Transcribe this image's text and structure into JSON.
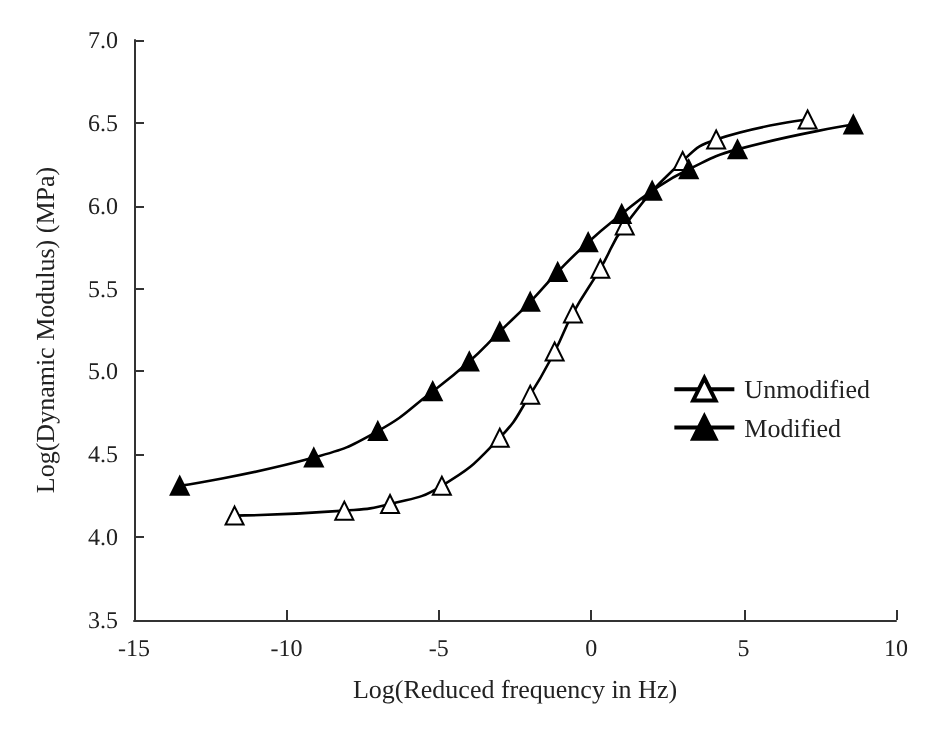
{
  "chart_data": {
    "type": "line",
    "xlabel": "Log(Reduced frequency in Hz)",
    "ylabel": "Log(Dynamic Modulus) (MPa)",
    "xlim": [
      -15,
      10
    ],
    "xticks": [
      -15,
      -10,
      -5,
      0,
      5,
      10
    ],
    "ylim": [
      3.5,
      7.0
    ],
    "yticks": [
      {
        "value": 3.5,
        "label": "3.5"
      },
      {
        "value": 4.0,
        "label": "4.0"
      },
      {
        "value": 4.5,
        "label": "4.5"
      },
      {
        "value": 5.0,
        "label": "5.0"
      },
      {
        "value": 5.5,
        "label": "5.5"
      },
      {
        "value": 6.0,
        "label": "6.0"
      },
      {
        "value": 6.5,
        "label": "6.5"
      },
      {
        "value": 7.0,
        "label": "7.0"
      }
    ],
    "grid": false,
    "legend": "right",
    "marker": "triangle",
    "line_style": "solid",
    "series": [
      {
        "name": "Unmodified",
        "color": "#000000",
        "x": [
          -11.7,
          -8.1,
          -6.6,
          -4.9,
          -3.0,
          -2.0,
          -1.2,
          -0.6,
          0.3,
          1.1,
          3.0,
          4.1,
          7.1
        ],
        "values": [
          4.13,
          4.16,
          4.2,
          4.31,
          4.6,
          4.86,
          5.12,
          5.35,
          5.62,
          5.88,
          6.27,
          6.4,
          6.52
        ]
      },
      {
        "name": "Modified",
        "color": "#000000",
        "x": [
          -13.5,
          -9.1,
          -7.0,
          -5.2,
          -4.0,
          -3.0,
          -2.0,
          -1.1,
          -0.1,
          1.0,
          2.0,
          3.2,
          4.8,
          8.6
        ],
        "values": [
          4.31,
          4.48,
          4.64,
          4.88,
          5.06,
          5.24,
          5.42,
          5.6,
          5.78,
          5.95,
          6.09,
          6.22,
          6.34,
          6.49
        ]
      }
    ]
  }
}
